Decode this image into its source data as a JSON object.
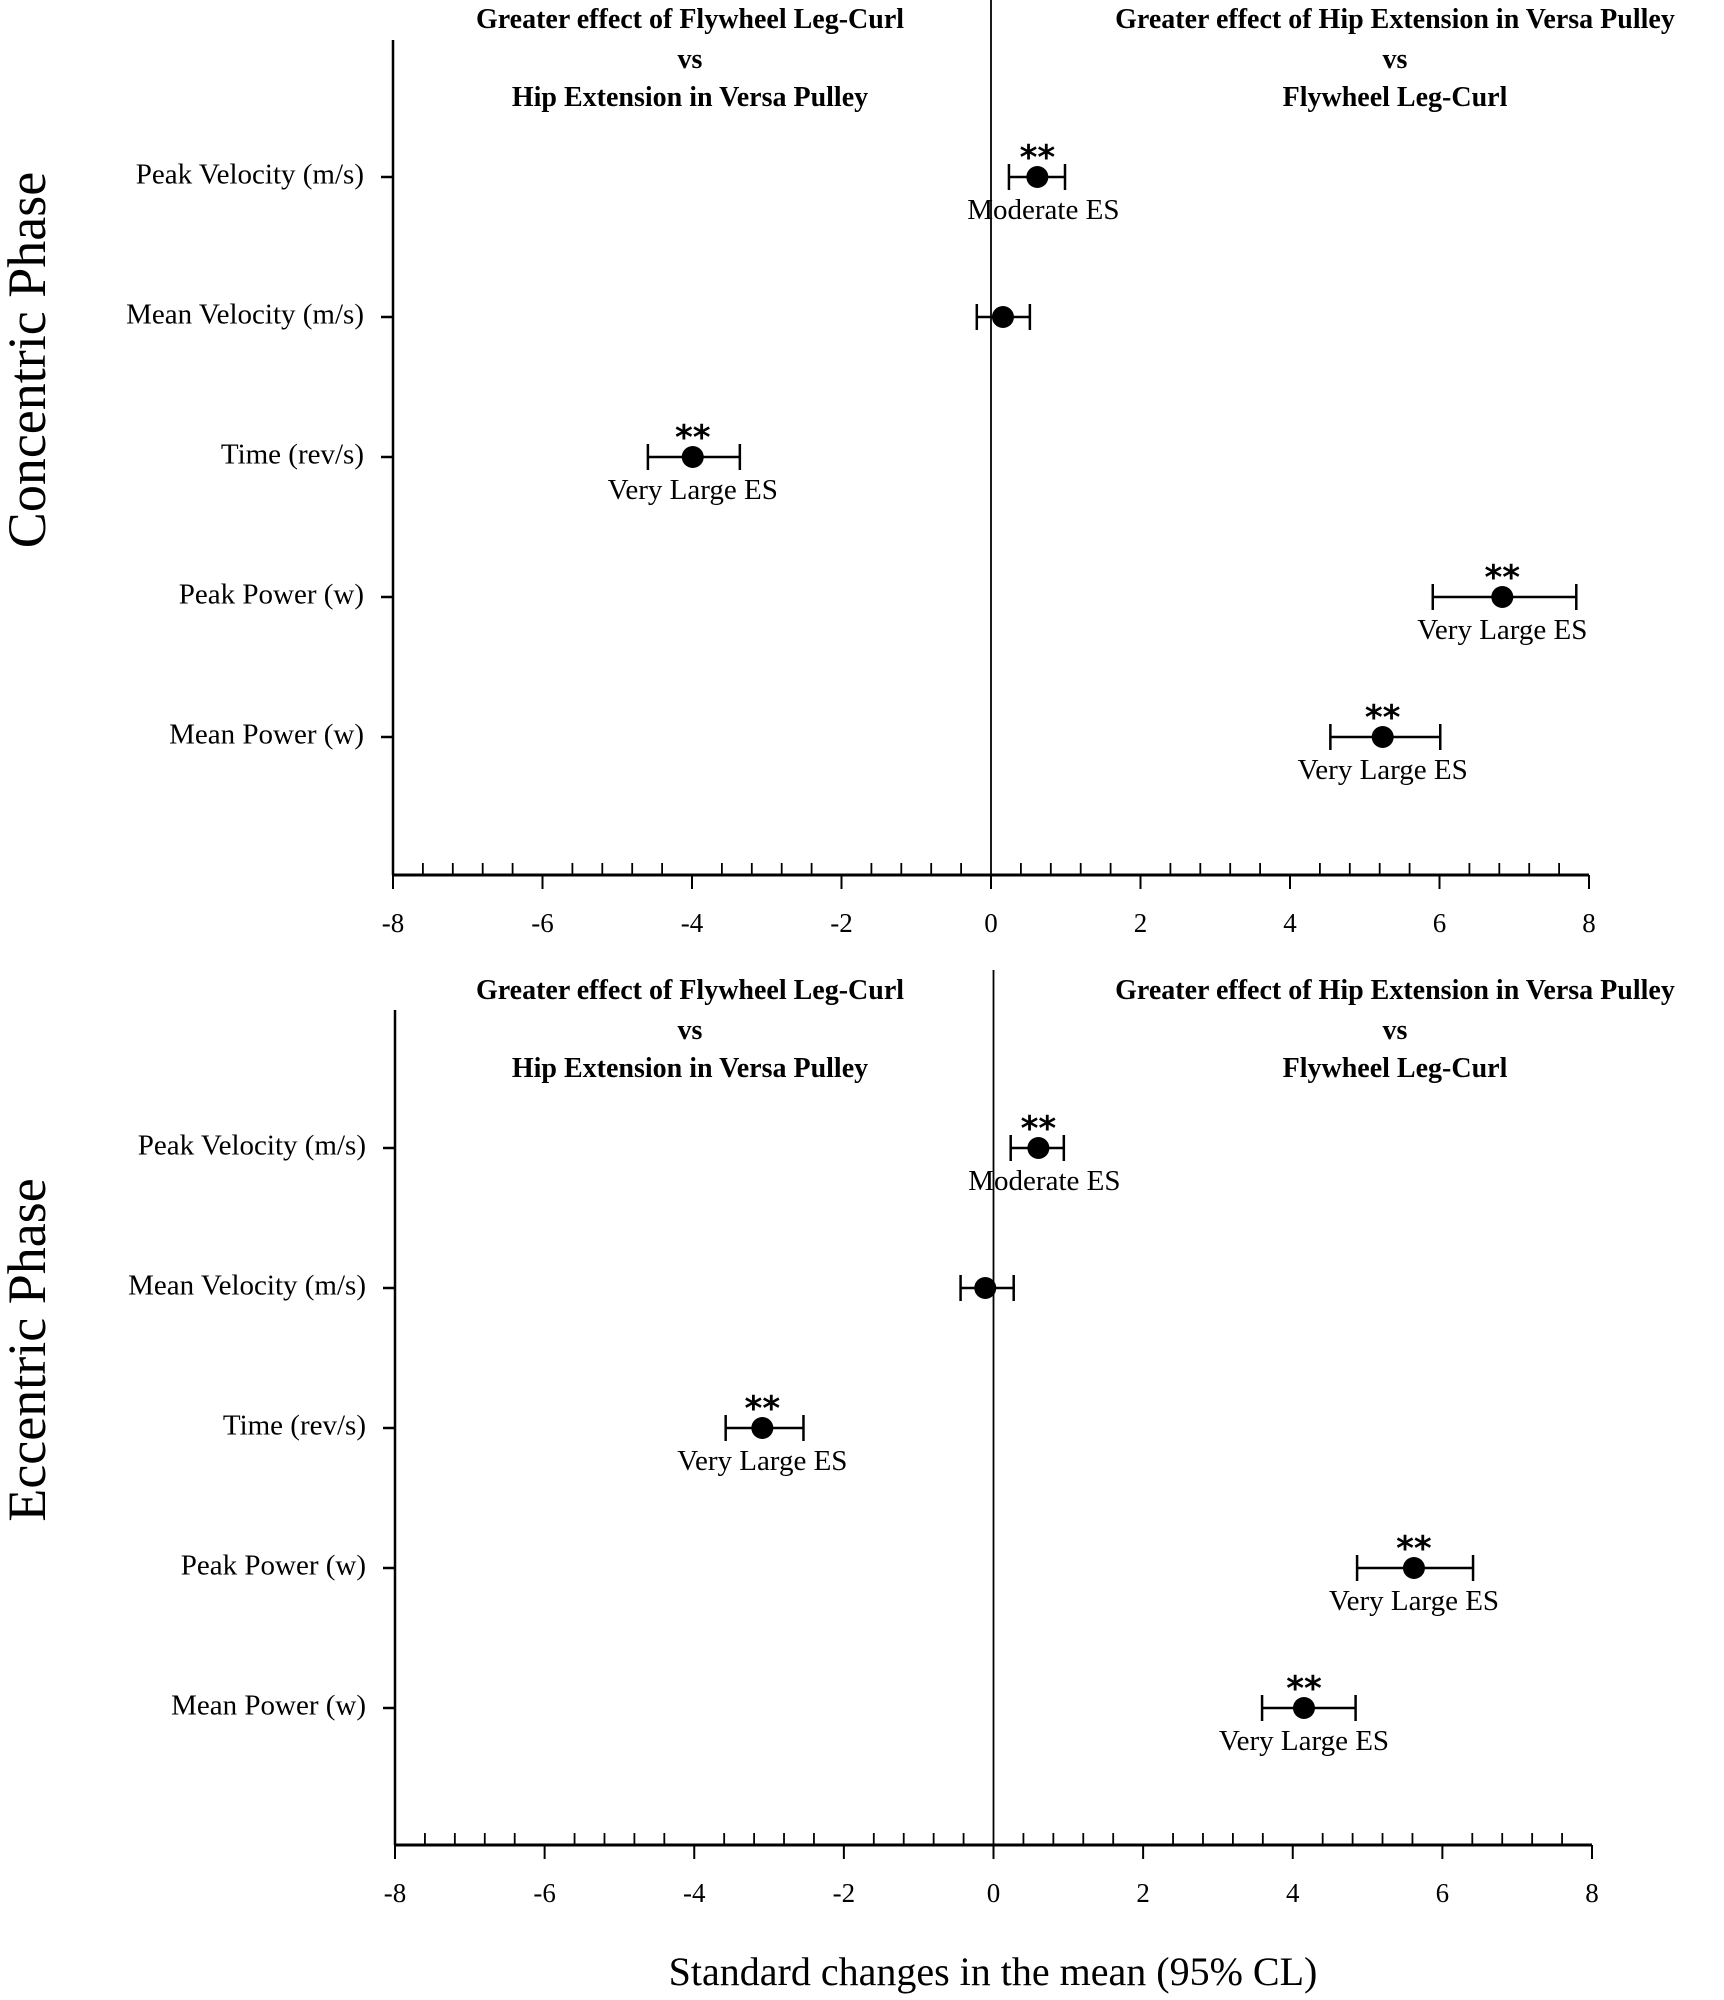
{
  "chart_data": {
    "type": "scatter",
    "subtype": "forest-plot-with-95%-CI",
    "xlabel": "Standard changes in the mean (95% CL)",
    "xlim": [
      -8,
      8
    ],
    "x_major_ticks": [
      -8,
      -6,
      -4,
      -2,
      0,
      2,
      4,
      6,
      8
    ],
    "x_tick_labels": [
      "-8",
      "-6",
      "-4",
      "-2",
      "0",
      "2",
      "4",
      "6",
      "8"
    ],
    "x_minor_step": 0.4,
    "grid": false,
    "reference_line_x": 0,
    "panels": [
      {
        "phase_label": "Concentric Phase",
        "left_header": [
          "Greater effect of Flywheel Leg-Curl",
          "vs",
          "Hip Extension in Versa Pulley"
        ],
        "right_header": [
          "Greater effect of Hip Extension in Versa Pulley",
          "vs",
          "Flywheel Leg-Curl"
        ],
        "categories": [
          "Peak Velocity (m/s)",
          "Mean Velocity (m/s)",
          "Time (rev/s)",
          "Peak Power (w)",
          "Mean Power (w)"
        ],
        "points": [
          {
            "category": "Peak Velocity (m/s)",
            "value": 0.62,
            "ci_low": 0.24,
            "ci_high": 0.99,
            "significance": "**",
            "es_label": "Moderate ES",
            "label_side": "right"
          },
          {
            "category": "Mean Velocity (m/s)",
            "value": 0.16,
            "ci_low": -0.19,
            "ci_high": 0.52,
            "significance": "",
            "es_label": "",
            "label_side": "center"
          },
          {
            "category": "Time (rev/s)",
            "value": -3.99,
            "ci_low": -4.59,
            "ci_high": -3.36,
            "significance": "**",
            "es_label": "Very Large ES",
            "label_side": "center"
          },
          {
            "category": "Peak Power (w)",
            "value": 6.84,
            "ci_low": 5.91,
            "ci_high": 7.83,
            "significance": "**",
            "es_label": "Very Large ES",
            "label_side": "center"
          },
          {
            "category": "Mean Power (w)",
            "value": 5.24,
            "ci_low": 4.54,
            "ci_high": 6.01,
            "significance": "**",
            "es_label": "Very Large ES",
            "label_side": "center"
          }
        ]
      },
      {
        "phase_label": "Eccentric Phase",
        "left_header": [
          "Greater effect of Flywheel Leg-Curl",
          "vs",
          "Hip Extension in Versa Pulley"
        ],
        "right_header": [
          "Greater effect of Hip Extension in Versa Pulley",
          "vs",
          "Flywheel Leg-Curl"
        ],
        "categories": [
          "Peak Velocity (m/s)",
          "Mean Velocity (m/s)",
          "Time (rev/s)",
          "Peak Power (w)",
          "Mean Power (w)"
        ],
        "points": [
          {
            "category": "Peak Velocity (m/s)",
            "value": 0.6,
            "ci_low": 0.23,
            "ci_high": 0.94,
            "significance": "**",
            "es_label": "Moderate ES",
            "label_side": "right"
          },
          {
            "category": "Mean Velocity (m/s)",
            "value": -0.11,
            "ci_low": -0.44,
            "ci_high": 0.27,
            "significance": "",
            "es_label": "",
            "label_side": "center"
          },
          {
            "category": "Time (rev/s)",
            "value": -3.09,
            "ci_low": -3.58,
            "ci_high": -2.54,
            "significance": "**",
            "es_label": "Very Large ES",
            "label_side": "center"
          },
          {
            "category": "Peak Power (w)",
            "value": 5.62,
            "ci_low": 4.86,
            "ci_high": 6.41,
            "significance": "**",
            "es_label": "Very Large ES",
            "label_side": "center"
          },
          {
            "category": "Mean Power (w)",
            "value": 4.15,
            "ci_low": 3.59,
            "ci_high": 4.84,
            "significance": "**",
            "es_label": "Very Large ES",
            "label_side": "center"
          }
        ]
      }
    ]
  }
}
